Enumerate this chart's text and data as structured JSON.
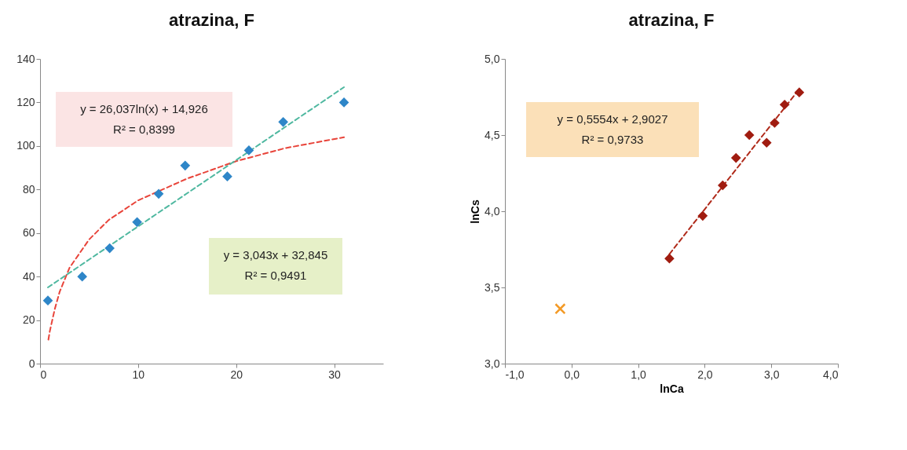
{
  "chart_data": [
    {
      "type": "scatter",
      "title": "atrazina, F",
      "xlim": [
        0,
        35
      ],
      "xticks": [
        0,
        10,
        20,
        30
      ],
      "ylim": [
        0,
        140
      ],
      "yticks": [
        0,
        20,
        40,
        60,
        80,
        100,
        120,
        140
      ],
      "grid": false,
      "annotations": [
        "y = 26,037ln(x) + 14,926",
        "R² = 0,8399",
        "y = 3,043x + 32,845",
        "R² = 0,9491"
      ],
      "series": [
        {
          "type": "line",
          "color": "#e8443a",
          "line_style": "dashed",
          "x": [
            0.85,
            1,
            1.5,
            2,
            3,
            5,
            7,
            10,
            15,
            20,
            25,
            31
          ],
          "values": [
            11,
            15,
            25,
            33,
            44,
            57,
            66,
            75,
            85,
            93,
            99,
            104
          ]
        },
        {
          "type": "line",
          "color": "#4fb8a0",
          "line_style": "dashed",
          "x": [
            0.8,
            31
          ],
          "values": [
            35,
            127
          ]
        },
        {
          "type": "scatter",
          "color": "#2e86c8",
          "marker": "diamond",
          "x": [
            0.8,
            4.3,
            7.1,
            9.9,
            12.1,
            14.8,
            19.1,
            21.3,
            24.8,
            31
          ],
          "values": [
            29,
            40,
            53,
            65,
            78,
            91,
            86,
            98,
            111,
            120
          ]
        }
      ]
    },
    {
      "type": "scatter",
      "title": "atrazina, F",
      "xlabel": "lnCa",
      "ylabel": "lnCs",
      "xlim": [
        -1,
        4
      ],
      "xticks": [
        {
          "value": -1,
          "label": "-1,0"
        },
        {
          "value": 0,
          "label": "0,0"
        },
        {
          "value": 1,
          "label": "1,0"
        },
        {
          "value": 2,
          "label": "2,0"
        },
        {
          "value": 3,
          "label": "3,0"
        },
        {
          "value": 4,
          "label": "4,0"
        }
      ],
      "ylim": [
        3,
        5
      ],
      "yticks": [
        {
          "value": 3,
          "label": "3,0"
        },
        {
          "value": 3.5,
          "label": "3,5"
        },
        {
          "value": 4,
          "label": "4,0"
        },
        {
          "value": 4.5,
          "label": "4,5"
        },
        {
          "value": 5,
          "label": "5,0"
        }
      ],
      "grid": false,
      "annotations": [
        "y = 0,5554x + 2,9027",
        "R² = 0,9733"
      ],
      "series": [
        {
          "type": "line",
          "color": "#b02a1a",
          "line_style": "dashed",
          "x": [
            1.47,
            3.42
          ],
          "values": [
            3.719,
            4.802
          ]
        },
        {
          "type": "scatter",
          "color": "#a01c10",
          "marker": "diamond",
          "x": [
            1.47,
            1.97,
            2.27,
            2.47,
            2.67,
            2.93,
            3.05,
            3.2,
            3.42
          ],
          "values": [
            3.69,
            3.97,
            4.17,
            4.35,
            4.5,
            4.45,
            4.58,
            4.7,
            4.78
          ]
        },
        {
          "type": "scatter",
          "color": "#f39a26",
          "marker": "cross",
          "x": [
            -0.17
          ],
          "values": [
            3.36
          ]
        }
      ]
    }
  ]
}
